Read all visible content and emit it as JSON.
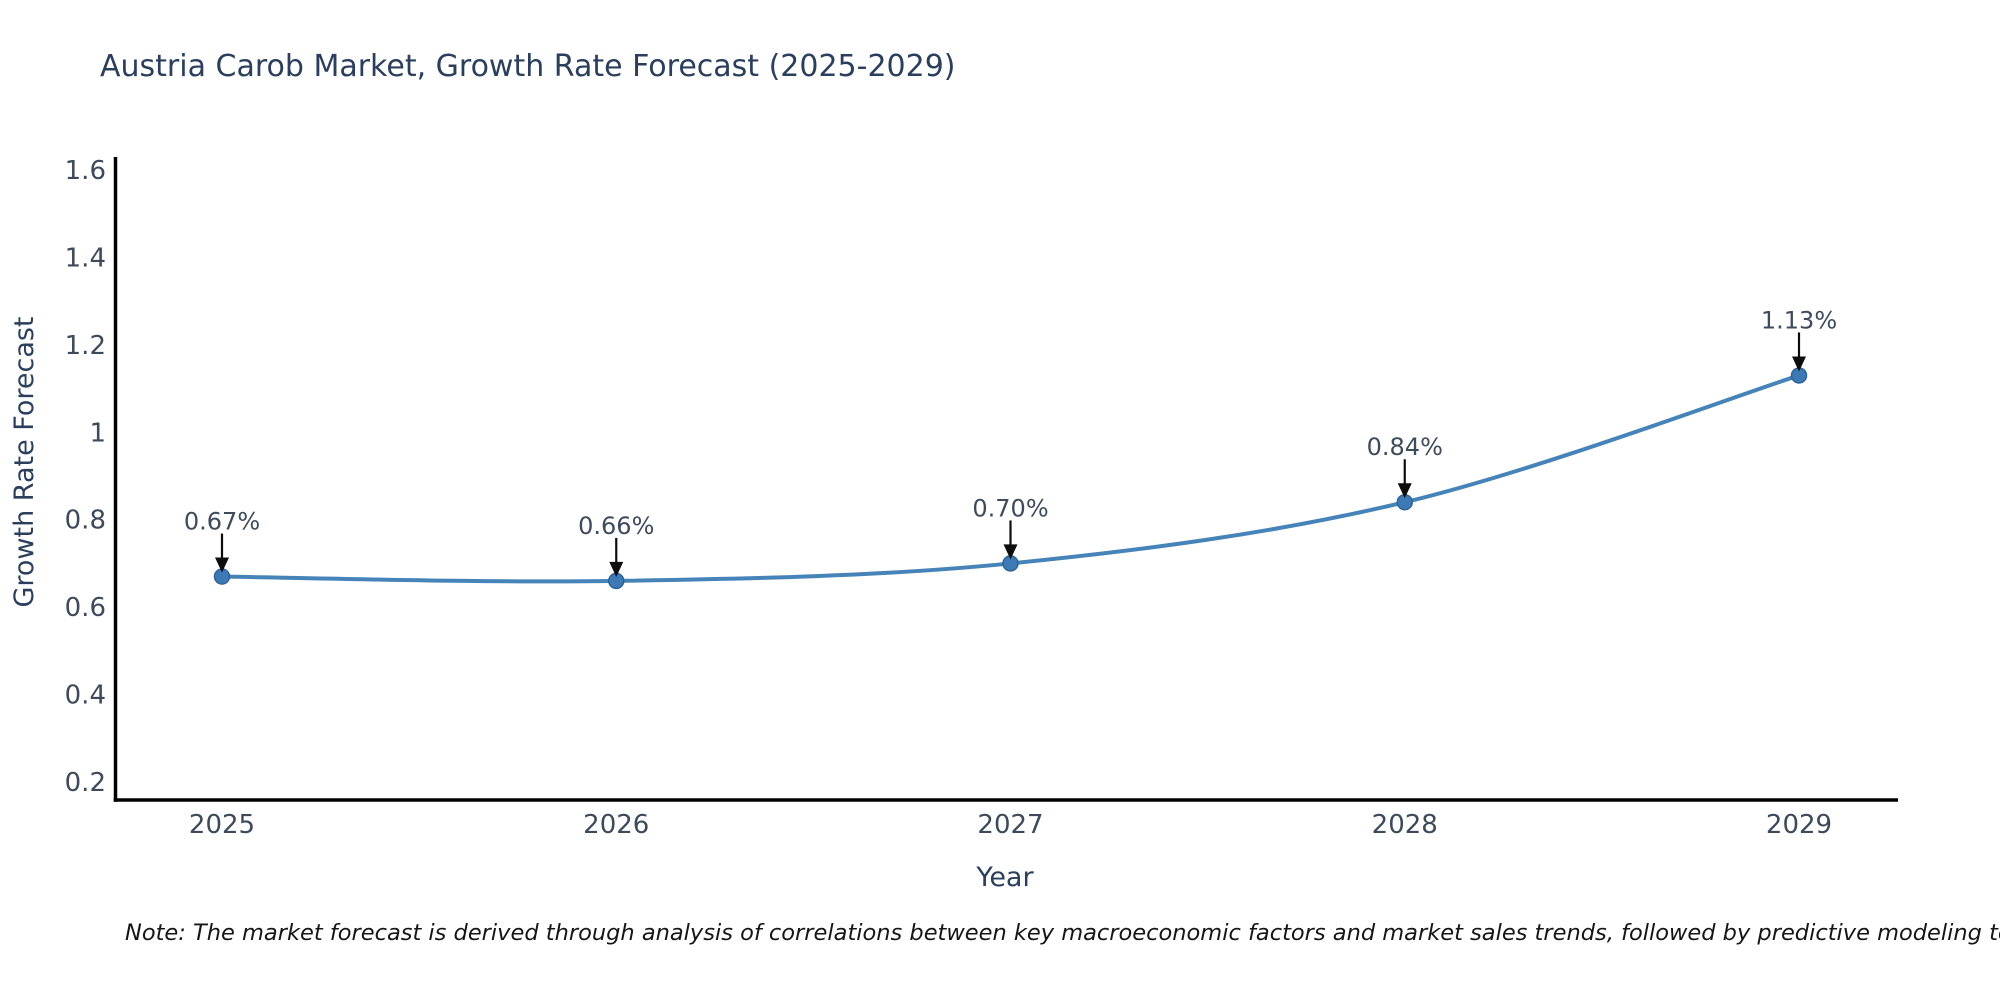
{
  "chart_data": {
    "type": "line",
    "title": "Austria Carob Market, Growth Rate Forecast (2025-2029)",
    "xlabel": "Year",
    "ylabel": "Growth Rate Forecast",
    "categories": [
      2025,
      2026,
      2027,
      2028,
      2029
    ],
    "series": [
      {
        "name": "Growth Rate Forecast",
        "values": [
          0.67,
          0.66,
          0.7,
          0.84,
          1.13
        ],
        "point_labels": [
          "0.67%",
          "0.66%",
          "0.70%",
          "0.84%",
          "1.13%"
        ]
      }
    ],
    "y_tick_labels": [
      "0.2",
      "0.4",
      "0.6",
      "0.8",
      "1",
      "1.2",
      "1.4",
      "1.6"
    ],
    "x_tick_labels": [
      "2025",
      "2026",
      "2027",
      "2028",
      "2029"
    ],
    "ylim": [
      0.16,
      1.63
    ],
    "grid": false,
    "legend": "none",
    "colors": {
      "line": "#4683b8",
      "marker_fill": "#3d7ab5",
      "marker_edge": "#2e6399",
      "axis_line": "#000000",
      "title_text": "#2b3f5c",
      "axis_label_text": "#2b3f5c",
      "tick_text": "#3d4a59",
      "annotation_text": "#3e4b5b",
      "arrow": "#0d0d0d",
      "note_text": "#161616"
    }
  },
  "note": {
    "text": "Note: The market forecast is derived through analysis of correlations between key macroeconomic factors and market sales trends, followed by predictive modeling to project future sales"
  }
}
